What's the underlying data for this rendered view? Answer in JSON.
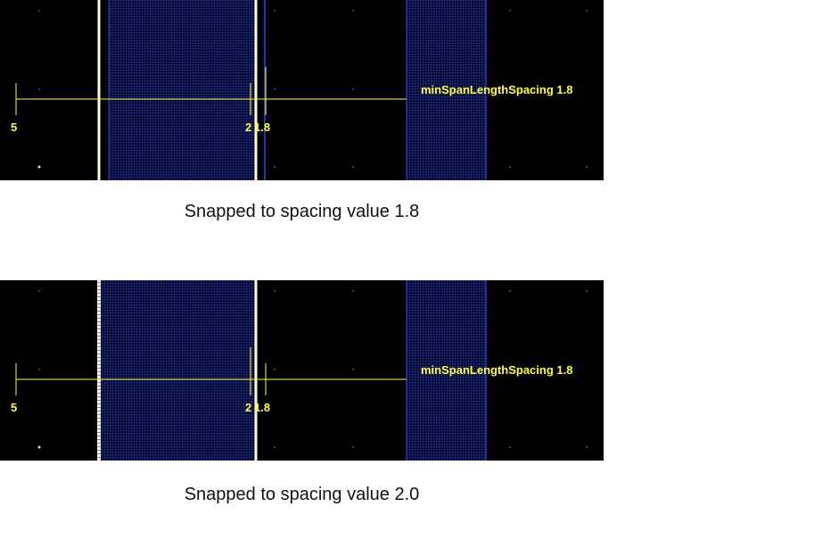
{
  "panels": [
    {
      "rule_label": "minSpanLengthSpacing 1.8",
      "labels": {
        "left": "5",
        "mid_a": "2",
        "mid_b": "1.8"
      },
      "caption": "Snapped to spacing value 1.8"
    },
    {
      "rule_label": "minSpanLengthSpacing 1.8",
      "labels": {
        "left": "5",
        "mid_a": "2",
        "mid_b": "1.8"
      },
      "caption": "Snapped to spacing value 2.0"
    }
  ],
  "colors": {
    "background": "#000000",
    "ruler": "#ffff33",
    "edge": "#ffffcc",
    "fill": "#1a2a8a",
    "fill_edge": "#3344dd"
  }
}
